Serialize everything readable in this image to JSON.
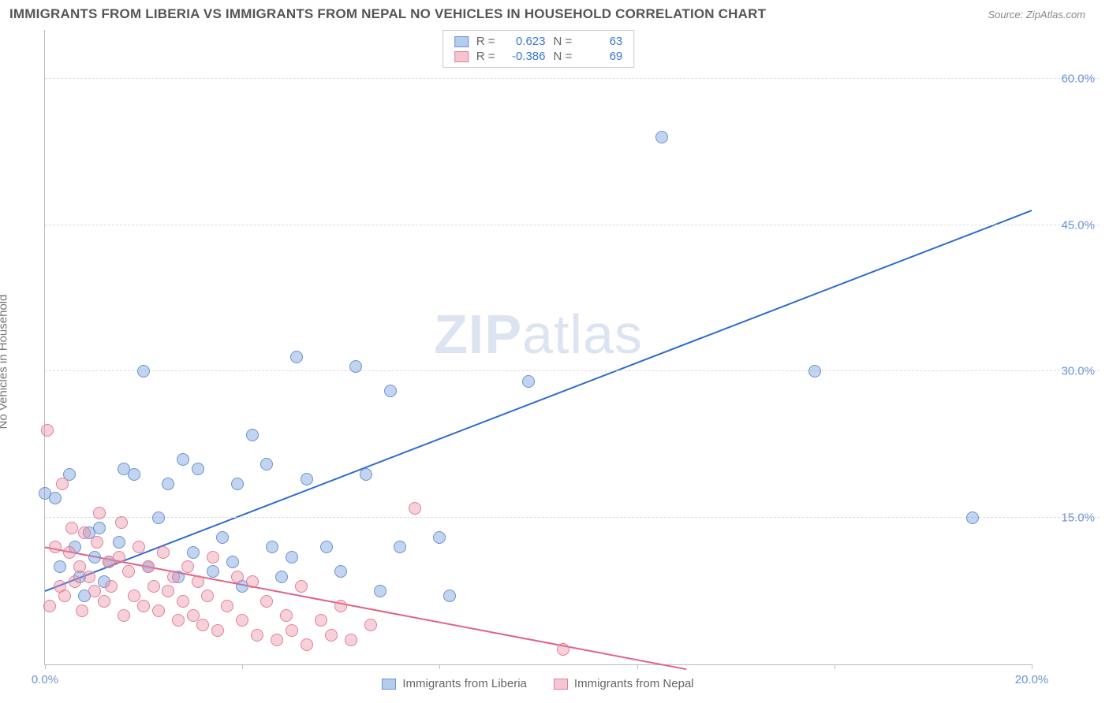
{
  "header": {
    "title": "IMMIGRANTS FROM LIBERIA VS IMMIGRANTS FROM NEPAL NO VEHICLES IN HOUSEHOLD CORRELATION CHART",
    "source": "Source: ZipAtlas.com"
  },
  "watermark": {
    "prefix": "ZIP",
    "suffix": "atlas"
  },
  "y_axis": {
    "label": "No Vehicles in Household"
  },
  "chart": {
    "type": "scatter",
    "xlim": [
      0,
      20
    ],
    "ylim": [
      0,
      65
    ],
    "x_ticks": [
      0,
      4,
      8,
      12,
      16,
      20
    ],
    "x_tick_labels": [
      "0.0%",
      "",
      "",
      "",
      "",
      "20.0%"
    ],
    "y_gridlines": [
      15,
      30,
      45,
      60
    ],
    "y_tick_labels": [
      "15.0%",
      "30.0%",
      "45.0%",
      "60.0%"
    ],
    "grid_color": "#dddddd",
    "axis_color": "#bbbbbb",
    "tick_label_color": "#6a93d4",
    "background_color": "#ffffff"
  },
  "series": [
    {
      "name": "Immigrants from Liberia",
      "color_fill": "rgba(120,160,220,0.45)",
      "color_stroke": "#6a93d4",
      "swatch_fill": "#b5cdec",
      "swatch_border": "#6a93d4",
      "marker_radius": 8,
      "r_value": "0.623",
      "n_value": "63",
      "trend": {
        "x1": 0,
        "y1": 7.5,
        "x2": 20,
        "y2": 46.5,
        "color": "#2f6bd0",
        "width": 2
      },
      "points": [
        [
          0.0,
          17.5
        ],
        [
          0.2,
          17.0
        ],
        [
          0.3,
          10.0
        ],
        [
          0.5,
          19.5
        ],
        [
          0.6,
          12.0
        ],
        [
          0.7,
          9.0
        ],
        [
          0.8,
          7.0
        ],
        [
          0.9,
          13.5
        ],
        [
          1.0,
          11.0
        ],
        [
          1.1,
          14.0
        ],
        [
          1.2,
          8.5
        ],
        [
          1.3,
          10.5
        ],
        [
          1.5,
          12.5
        ],
        [
          1.6,
          20.0
        ],
        [
          1.8,
          19.5
        ],
        [
          2.0,
          30.0
        ],
        [
          2.1,
          10.0
        ],
        [
          2.3,
          15.0
        ],
        [
          2.5,
          18.5
        ],
        [
          2.7,
          9.0
        ],
        [
          2.8,
          21.0
        ],
        [
          3.0,
          11.5
        ],
        [
          3.1,
          20.0
        ],
        [
          3.4,
          9.5
        ],
        [
          3.6,
          13.0
        ],
        [
          3.8,
          10.5
        ],
        [
          3.9,
          18.5
        ],
        [
          4.0,
          8.0
        ],
        [
          4.2,
          23.5
        ],
        [
          4.5,
          20.5
        ],
        [
          4.6,
          12.0
        ],
        [
          4.8,
          9.0
        ],
        [
          5.0,
          11.0
        ],
        [
          5.1,
          31.5
        ],
        [
          5.3,
          19.0
        ],
        [
          5.7,
          12.0
        ],
        [
          6.0,
          9.5
        ],
        [
          6.3,
          30.5
        ],
        [
          6.5,
          19.5
        ],
        [
          6.8,
          7.5
        ],
        [
          7.0,
          28.0
        ],
        [
          7.2,
          12.0
        ],
        [
          8.0,
          13.0
        ],
        [
          8.2,
          7.0
        ],
        [
          9.8,
          29.0
        ],
        [
          12.5,
          54.0
        ],
        [
          15.6,
          30.0
        ],
        [
          18.8,
          15.0
        ]
      ]
    },
    {
      "name": "Immigrants from Nepal",
      "color_fill": "rgba(235,140,160,0.40)",
      "color_stroke": "#e37f99",
      "swatch_fill": "#f5c6d1",
      "swatch_border": "#e37f99",
      "marker_radius": 8,
      "r_value": "-0.386",
      "n_value": "69",
      "trend": {
        "x1": 0,
        "y1": 12.0,
        "x2": 13.0,
        "y2": -0.5,
        "color": "#e06284",
        "width": 2
      },
      "points": [
        [
          0.05,
          24.0
        ],
        [
          0.1,
          6.0
        ],
        [
          0.2,
          12.0
        ],
        [
          0.3,
          8.0
        ],
        [
          0.35,
          18.5
        ],
        [
          0.4,
          7.0
        ],
        [
          0.5,
          11.5
        ],
        [
          0.55,
          14.0
        ],
        [
          0.6,
          8.5
        ],
        [
          0.7,
          10.0
        ],
        [
          0.75,
          5.5
        ],
        [
          0.8,
          13.5
        ],
        [
          0.9,
          9.0
        ],
        [
          1.0,
          7.5
        ],
        [
          1.05,
          12.5
        ],
        [
          1.1,
          15.5
        ],
        [
          1.2,
          6.5
        ],
        [
          1.3,
          10.5
        ],
        [
          1.35,
          8.0
        ],
        [
          1.5,
          11.0
        ],
        [
          1.55,
          14.5
        ],
        [
          1.6,
          5.0
        ],
        [
          1.7,
          9.5
        ],
        [
          1.8,
          7.0
        ],
        [
          1.9,
          12.0
        ],
        [
          2.0,
          6.0
        ],
        [
          2.1,
          10.0
        ],
        [
          2.2,
          8.0
        ],
        [
          2.3,
          5.5
        ],
        [
          2.4,
          11.5
        ],
        [
          2.5,
          7.5
        ],
        [
          2.6,
          9.0
        ],
        [
          2.7,
          4.5
        ],
        [
          2.8,
          6.5
        ],
        [
          2.9,
          10.0
        ],
        [
          3.0,
          5.0
        ],
        [
          3.1,
          8.5
        ],
        [
          3.2,
          4.0
        ],
        [
          3.3,
          7.0
        ],
        [
          3.4,
          11.0
        ],
        [
          3.5,
          3.5
        ],
        [
          3.7,
          6.0
        ],
        [
          3.9,
          9.0
        ],
        [
          4.0,
          4.5
        ],
        [
          4.2,
          8.5
        ],
        [
          4.3,
          3.0
        ],
        [
          4.5,
          6.5
        ],
        [
          4.7,
          2.5
        ],
        [
          4.9,
          5.0
        ],
        [
          5.0,
          3.5
        ],
        [
          5.2,
          8.0
        ],
        [
          5.3,
          2.0
        ],
        [
          5.6,
          4.5
        ],
        [
          5.8,
          3.0
        ],
        [
          6.0,
          6.0
        ],
        [
          6.2,
          2.5
        ],
        [
          6.6,
          4.0
        ],
        [
          7.5,
          16.0
        ],
        [
          10.5,
          1.5
        ]
      ]
    }
  ],
  "stats_labels": {
    "r": "R =",
    "n": "N ="
  },
  "legend": {
    "series1": "Immigrants from Liberia",
    "series2": "Immigrants from Nepal"
  }
}
